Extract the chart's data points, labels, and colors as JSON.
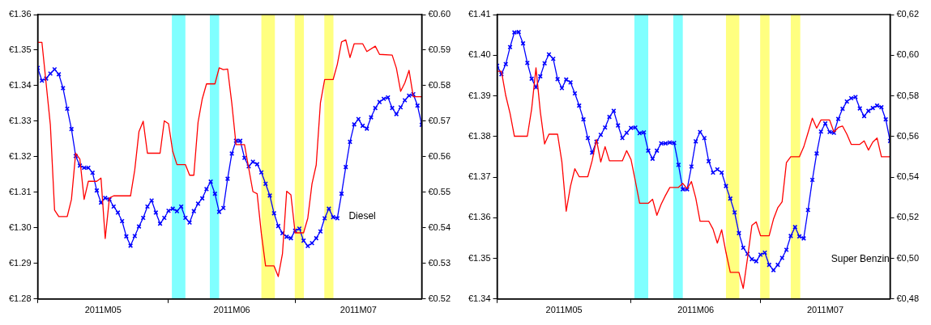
{
  "chart_data": [
    {
      "type": "line",
      "legend": false,
      "x": [
        "2011-05-01",
        "2011-05-02",
        "2011-05-03",
        "2011-05-04",
        "2011-05-05",
        "2011-05-06",
        "2011-05-07",
        "2011-05-08",
        "2011-05-09",
        "2011-05-10",
        "2011-05-11",
        "2011-05-12",
        "2011-05-13",
        "2011-05-14",
        "2011-05-15",
        "2011-05-16",
        "2011-05-17",
        "2011-05-18",
        "2011-05-19",
        "2011-05-20",
        "2011-05-21",
        "2011-05-22",
        "2011-05-23",
        "2011-05-24",
        "2011-05-25",
        "2011-05-26",
        "2011-05-27",
        "2011-05-28",
        "2011-05-29",
        "2011-05-30",
        "2011-05-31",
        "2011-06-01",
        "2011-06-02",
        "2011-06-03",
        "2011-06-04",
        "2011-06-05",
        "2011-06-06",
        "2011-06-07",
        "2011-06-08",
        "2011-06-09",
        "2011-06-10",
        "2011-06-11",
        "2011-06-12",
        "2011-06-13",
        "2011-06-14",
        "2011-06-15",
        "2011-06-16",
        "2011-06-17",
        "2011-06-18",
        "2011-06-19",
        "2011-06-20",
        "2011-06-21",
        "2011-06-22",
        "2011-06-23",
        "2011-06-24",
        "2011-06-25",
        "2011-06-26",
        "2011-06-27",
        "2011-06-28",
        "2011-06-29",
        "2011-06-30",
        "2011-07-01",
        "2011-07-02",
        "2011-07-03",
        "2011-07-04",
        "2011-07-05",
        "2011-07-06",
        "2011-07-07",
        "2011-07-08",
        "2011-07-09",
        "2011-07-10",
        "2011-07-11",
        "2011-07-12",
        "2011-07-13",
        "2011-07-14",
        "2011-07-15",
        "2011-07-16",
        "2011-07-17",
        "2011-07-18",
        "2011-07-19",
        "2011-07-20",
        "2011-07-21",
        "2011-07-22",
        "2011-07-23",
        "2011-07-24",
        "2011-07-25",
        "2011-07-26",
        "2011-07-27",
        "2011-07-28",
        "2011-07-29",
        "2011-07-30",
        "2011-07-31"
      ],
      "xlim": [
        "2011-05-01",
        "2011-07-31"
      ],
      "xticks": [
        {
          "value": "2011-05-01",
          "label": null
        },
        {
          "value": "2011-05-16T12:00",
          "label": "2011M05"
        },
        {
          "value": "2011-06-01",
          "label": null
        },
        {
          "value": "2011-06-16",
          "label": "2011M06"
        },
        {
          "value": "2011-07-01",
          "label": null
        },
        {
          "value": "2011-07-16",
          "label": "2011M07"
        }
      ],
      "ylim": [
        1.28,
        1.36
      ],
      "yticks": [
        {
          "value": 1.28,
          "label": "€1.28"
        },
        {
          "value": 1.29,
          "label": "€1.29"
        },
        {
          "value": 1.3,
          "label": "€1.30"
        },
        {
          "value": 1.31,
          "label": "€1.31"
        },
        {
          "value": 1.32,
          "label": "€1.32"
        },
        {
          "value": 1.33,
          "label": "€1.33"
        },
        {
          "value": 1.34,
          "label": "€1.34"
        },
        {
          "value": 1.35,
          "label": "€1.35"
        },
        {
          "value": 1.36,
          "label": "€1.36"
        }
      ],
      "y2lim": [
        0.52,
        0.6
      ],
      "y2ticks": [
        {
          "value": 0.52,
          "label": "€0.52"
        },
        {
          "value": 0.53,
          "label": "€0.53"
        },
        {
          "value": 0.54,
          "label": "€0.54"
        },
        {
          "value": 0.55,
          "label": "€0.55"
        },
        {
          "value": 0.56,
          "label": "€0.56"
        },
        {
          "value": 0.57,
          "label": "€0.57"
        },
        {
          "value": 0.58,
          "label": "€0.58"
        },
        {
          "value": 0.59,
          "label": "€0.59"
        },
        {
          "value": 0.6,
          "label": "€0.60"
        }
      ],
      "bands": [
        {
          "axis": "x",
          "from": "2011-06-01T19:00",
          "to": "2011-06-05",
          "color": "#80ffff"
        },
        {
          "axis": "x",
          "from": "2011-06-10T19:00",
          "to": "2011-06-13",
          "color": "#80ffff"
        },
        {
          "axis": "x",
          "from": "2011-06-23",
          "to": "2011-06-26T05:00",
          "color": "#ffff80"
        },
        {
          "axis": "x",
          "from": "2011-06-30T22:00",
          "to": "2011-07-03T02:00",
          "color": "#ffff80"
        },
        {
          "axis": "x",
          "from": "2011-07-07T22:00",
          "to": "2011-07-10T02:00",
          "color": "#ffff80"
        }
      ],
      "series": [
        {
          "color": "#ff0000",
          "axis": "y2",
          "marker": "none",
          "x": [
            "2011-05-01",
            "2011-05-02",
            "2011-05-04",
            "2011-05-05",
            "2011-05-06",
            "2011-05-08",
            "2011-05-09",
            "2011-05-10",
            "2011-05-11",
            "2011-05-12",
            "2011-05-13",
            "2011-05-15",
            "2011-05-16",
            "2011-05-17",
            "2011-05-18",
            "2011-05-19",
            "2011-05-23",
            "2011-05-24",
            "2011-05-25",
            "2011-05-26",
            "2011-05-27",
            "2011-05-30",
            "2011-05-31",
            "2011-06-01",
            "2011-06-02",
            "2011-06-03",
            "2011-06-05",
            "2011-06-06",
            "2011-06-07",
            "2011-06-08",
            "2011-06-09",
            "2011-06-10",
            "2011-06-12",
            "2011-06-13",
            "2011-06-14",
            "2011-06-15",
            "2011-06-16",
            "2011-06-17",
            "2011-06-19",
            "2011-06-21",
            "2011-06-22",
            "2011-06-23",
            "2011-06-24",
            "2011-06-26",
            "2011-06-27",
            "2011-06-28",
            "2011-06-29",
            "2011-06-30",
            "2011-07-01",
            "2011-07-03",
            "2011-07-04",
            "2011-07-05",
            "2011-07-06",
            "2011-07-07",
            "2011-07-08",
            "2011-07-10",
            "2011-07-11",
            "2011-07-12",
            "2011-07-13",
            "2011-07-14",
            "2011-07-15",
            "2011-07-17",
            "2011-07-18",
            "2011-07-20",
            "2011-07-21",
            "2011-07-24",
            "2011-07-25",
            "2011-07-26",
            "2011-07-27",
            "2011-07-28",
            "2011-07-29",
            "2011-07-31"
          ],
          "values": [
            0.5922,
            0.5922,
            0.569,
            0.545,
            0.5432,
            0.5432,
            0.548,
            0.561,
            0.5593,
            0.548,
            0.5531,
            0.5531,
            0.554,
            0.537,
            0.5484,
            0.549,
            0.549,
            0.5563,
            0.5671,
            0.57,
            0.561,
            0.561,
            0.5701,
            0.5693,
            0.5615,
            0.5578,
            0.5578,
            0.5548,
            0.5548,
            0.5697,
            0.5763,
            0.5805,
            0.5805,
            0.585,
            0.5845,
            0.5847,
            0.575,
            0.5634,
            0.5634,
            0.5502,
            0.5496,
            0.5384,
            0.5293,
            0.5293,
            0.5263,
            0.5327,
            0.5503,
            0.5493,
            0.5386,
            0.5386,
            0.5427,
            0.5524,
            0.5577,
            0.5752,
            0.5817,
            0.5817,
            0.586,
            0.5923,
            0.5929,
            0.5879,
            0.5918,
            0.5918,
            0.5896,
            0.5911,
            0.5888,
            0.5886,
            0.5849,
            0.5784,
            0.5808,
            0.5843,
            0.5769,
            0.5769
          ]
        },
        {
          "name": "Diesel",
          "color": "#0000ff",
          "marker": "cross",
          "values": [
            1.345,
            1.3414,
            1.342,
            1.3434,
            1.3446,
            1.3432,
            1.3393,
            1.3335,
            1.3278,
            1.3202,
            1.3175,
            1.3169,
            1.3169,
            1.3155,
            1.3105,
            1.3071,
            1.3084,
            1.308,
            1.306,
            1.3043,
            1.3019,
            1.2976,
            1.295,
            1.2977,
            1.3004,
            1.3028,
            1.306,
            1.3077,
            1.3043,
            1.3012,
            1.3028,
            1.3048,
            1.3054,
            1.3047,
            1.306,
            1.3028,
            1.3015,
            1.3047,
            1.3068,
            1.3083,
            1.3109,
            1.313,
            1.3096,
            1.3045,
            1.3056,
            1.3138,
            1.3209,
            1.3245,
            1.3245,
            1.3197,
            1.3173,
            1.3186,
            1.3179,
            1.3156,
            1.3124,
            1.3091,
            1.3041,
            1.3005,
            1.2985,
            1.2975,
            1.2971,
            1.2992,
            1.2998,
            1.2964,
            1.2949,
            1.2957,
            1.2971,
            1.299,
            1.3027,
            1.3054,
            1.303,
            1.3027,
            1.3096,
            1.3171,
            1.3242,
            1.3291,
            1.3306,
            1.3287,
            1.3279,
            1.3311,
            1.3337,
            1.3354,
            1.3363,
            1.3367,
            1.3337,
            1.332,
            1.3339,
            1.3359,
            1.3372,
            1.3376,
            1.3344,
            1.329
          ]
        }
      ]
    },
    {
      "type": "line",
      "legend": false,
      "x": [
        "2011-05-01",
        "2011-05-02",
        "2011-05-03",
        "2011-05-04",
        "2011-05-05",
        "2011-05-06",
        "2011-05-07",
        "2011-05-08",
        "2011-05-09",
        "2011-05-10",
        "2011-05-11",
        "2011-05-12",
        "2011-05-13",
        "2011-05-14",
        "2011-05-15",
        "2011-05-16",
        "2011-05-17",
        "2011-05-18",
        "2011-05-19",
        "2011-05-20",
        "2011-05-21",
        "2011-05-22",
        "2011-05-23",
        "2011-05-24",
        "2011-05-25",
        "2011-05-26",
        "2011-05-27",
        "2011-05-28",
        "2011-05-29",
        "2011-05-30",
        "2011-05-31",
        "2011-06-01",
        "2011-06-02",
        "2011-06-03",
        "2011-06-04",
        "2011-06-05",
        "2011-06-06",
        "2011-06-07",
        "2011-06-08",
        "2011-06-09",
        "2011-06-10",
        "2011-06-11",
        "2011-06-12",
        "2011-06-13",
        "2011-06-14",
        "2011-06-15",
        "2011-06-16",
        "2011-06-17",
        "2011-06-18",
        "2011-06-19",
        "2011-06-20",
        "2011-06-21",
        "2011-06-22",
        "2011-06-23",
        "2011-06-24",
        "2011-06-25",
        "2011-06-26",
        "2011-06-27",
        "2011-06-28",
        "2011-06-29",
        "2011-06-30",
        "2011-07-01",
        "2011-07-02",
        "2011-07-03",
        "2011-07-04",
        "2011-07-05",
        "2011-07-06",
        "2011-07-07",
        "2011-07-08",
        "2011-07-09",
        "2011-07-10",
        "2011-07-11",
        "2011-07-12",
        "2011-07-13",
        "2011-07-14",
        "2011-07-15",
        "2011-07-16",
        "2011-07-17",
        "2011-07-18",
        "2011-07-19",
        "2011-07-20",
        "2011-07-21",
        "2011-07-22",
        "2011-07-23",
        "2011-07-24",
        "2011-07-25",
        "2011-07-26",
        "2011-07-27",
        "2011-07-28",
        "2011-07-29",
        "2011-07-30",
        "2011-07-31"
      ],
      "xlim": [
        "2011-05-01",
        "2011-07-31"
      ],
      "xticks": [
        {
          "value": "2011-05-01",
          "label": null
        },
        {
          "value": "2011-05-16T12:00",
          "label": "2011M05"
        },
        {
          "value": "2011-06-01",
          "label": null
        },
        {
          "value": "2011-06-16",
          "label": "2011M06"
        },
        {
          "value": "2011-07-01",
          "label": null
        },
        {
          "value": "2011-07-16",
          "label": "2011M07"
        }
      ],
      "ylim": [
        1.34,
        1.41
      ],
      "yticks": [
        {
          "value": 1.34,
          "label": "€1.34"
        },
        {
          "value": 1.35,
          "label": "€1.35"
        },
        {
          "value": 1.36,
          "label": "€1.36"
        },
        {
          "value": 1.37,
          "label": "€1.37"
        },
        {
          "value": 1.38,
          "label": "€1.38"
        },
        {
          "value": 1.39,
          "label": "€1.39"
        },
        {
          "value": 1.4,
          "label": "€1.40"
        },
        {
          "value": 1.41,
          "label": "€1.41"
        }
      ],
      "y2lim": [
        0.48,
        0.62
      ],
      "y2ticks": [
        {
          "value": 0.48,
          "label": "€0,48"
        },
        {
          "value": 0.5,
          "label": "€0,50"
        },
        {
          "value": 0.52,
          "label": "€0,52"
        },
        {
          "value": 0.54,
          "label": "€0,54"
        },
        {
          "value": 0.56,
          "label": "€0,56"
        },
        {
          "value": 0.58,
          "label": "€0,58"
        },
        {
          "value": 0.6,
          "label": "€0,60"
        },
        {
          "value": 0.62,
          "label": "€0,62"
        }
      ],
      "bands": [
        {
          "axis": "x",
          "from": "2011-06-01T19:00",
          "to": "2011-06-05",
          "color": "#80ffff"
        },
        {
          "axis": "x",
          "from": "2011-06-10T19:00",
          "to": "2011-06-13",
          "color": "#80ffff"
        },
        {
          "axis": "x",
          "from": "2011-06-23",
          "to": "2011-06-26T02:00",
          "color": "#ffff80"
        },
        {
          "axis": "x",
          "from": "2011-06-30T22:00",
          "to": "2011-07-03T02:00",
          "color": "#ffff80"
        },
        {
          "axis": "x",
          "from": "2011-07-08",
          "to": "2011-07-10T05:00",
          "color": "#ffff80"
        }
      ],
      "series": [
        {
          "color": "#ff0000",
          "axis": "y2",
          "marker": "none",
          "x": [
            "2011-05-01",
            "2011-05-02",
            "2011-05-03",
            "2011-05-04",
            "2011-05-05",
            "2011-05-08",
            "2011-05-09",
            "2011-05-10",
            "2011-05-11",
            "2011-05-12",
            "2011-05-13",
            "2011-05-15",
            "2011-05-16",
            "2011-05-17",
            "2011-05-18",
            "2011-05-19",
            "2011-05-20",
            "2011-05-22",
            "2011-05-23",
            "2011-05-24",
            "2011-05-25",
            "2011-05-26",
            "2011-05-27",
            "2011-05-30",
            "2011-05-31",
            "2011-06-01",
            "2011-06-02",
            "2011-06-03",
            "2011-06-05",
            "2011-06-06",
            "2011-06-07",
            "2011-06-08",
            "2011-06-09",
            "2011-06-10",
            "2011-06-12",
            "2011-06-13",
            "2011-06-14",
            "2011-06-15",
            "2011-06-16",
            "2011-06-17",
            "2011-06-19",
            "2011-06-20",
            "2011-06-21",
            "2011-06-22",
            "2011-06-23",
            "2011-06-24",
            "2011-06-26",
            "2011-06-27",
            "2011-06-28",
            "2011-06-29",
            "2011-06-30",
            "2011-07-01",
            "2011-07-03",
            "2011-07-04",
            "2011-07-05",
            "2011-07-06",
            "2011-07-07",
            "2011-07-08",
            "2011-07-10",
            "2011-07-11",
            "2011-07-12",
            "2011-07-13",
            "2011-07-14",
            "2011-07-15",
            "2011-07-17",
            "2011-07-18",
            "2011-07-19",
            "2011-07-20",
            "2011-07-21",
            "2011-07-22",
            "2011-07-24",
            "2011-07-25",
            "2011-07-26",
            "2011-07-27",
            "2011-07-28",
            "2011-07-29",
            "2011-07-31"
          ],
          "values": [
            0.5921,
            0.5921,
            0.5801,
            0.5713,
            0.5601,
            0.5601,
            0.5736,
            0.5938,
            0.5722,
            0.5563,
            0.5611,
            0.5611,
            0.5474,
            0.5232,
            0.5356,
            0.5441,
            0.5402,
            0.5402,
            0.548,
            0.5585,
            0.5474,
            0.555,
            0.548,
            0.548,
            0.553,
            0.5487,
            0.5382,
            0.5271,
            0.5271,
            0.5291,
            0.5212,
            0.5267,
            0.531,
            0.5349,
            0.5349,
            0.5369,
            0.5343,
            0.5378,
            0.5297,
            0.5183,
            0.5183,
            0.5144,
            0.5075,
            0.5141,
            0.5029,
            0.4931,
            0.4931,
            0.4852,
            0.5003,
            0.5162,
            0.5179,
            0.5111,
            0.5111,
            0.5193,
            0.5249,
            0.5278,
            0.5471,
            0.55,
            0.55,
            0.5548,
            0.5618,
            0.569,
            0.5641,
            0.5681,
            0.5681,
            0.5622,
            0.5644,
            0.5651,
            0.5611,
            0.5561,
            0.5561,
            0.5578,
            0.5533,
            0.5572,
            0.5592,
            0.55,
            0.55
          ]
        },
        {
          "name": "Super Benzin",
          "color": "#0000ff",
          "marker": "cross",
          "values": [
            1.3974,
            1.3953,
            1.3978,
            1.402,
            1.4056,
            1.4057,
            1.4029,
            1.3981,
            1.3942,
            1.3921,
            1.3948,
            1.398,
            1.4002,
            1.3991,
            1.3941,
            1.3919,
            1.394,
            1.3933,
            1.3906,
            1.3876,
            1.3842,
            1.3796,
            1.376,
            1.3787,
            1.3804,
            1.3822,
            1.3848,
            1.3863,
            1.3827,
            1.3796,
            1.3809,
            1.3821,
            1.3822,
            1.3808,
            1.381,
            1.3765,
            1.3745,
            1.3765,
            1.3783,
            1.3783,
            1.3785,
            1.3784,
            1.373,
            1.367,
            1.367,
            1.3726,
            1.3788,
            1.3811,
            1.3796,
            1.3739,
            1.3711,
            1.3719,
            1.3711,
            1.3678,
            1.3647,
            1.3613,
            1.3562,
            1.3526,
            1.3511,
            1.3498,
            1.3493,
            1.3509,
            1.3514,
            1.3484,
            1.3471,
            1.3484,
            1.3501,
            1.3521,
            1.3555,
            1.3577,
            1.3554,
            1.3549,
            1.3619,
            1.3693,
            1.3758,
            1.3812,
            1.3832,
            1.3811,
            1.3809,
            1.3843,
            1.3868,
            1.3886,
            1.3894,
            1.3897,
            1.3869,
            1.385,
            1.3863,
            1.387,
            1.3876,
            1.3872,
            1.3842,
            1.3789
          ]
        }
      ]
    }
  ]
}
